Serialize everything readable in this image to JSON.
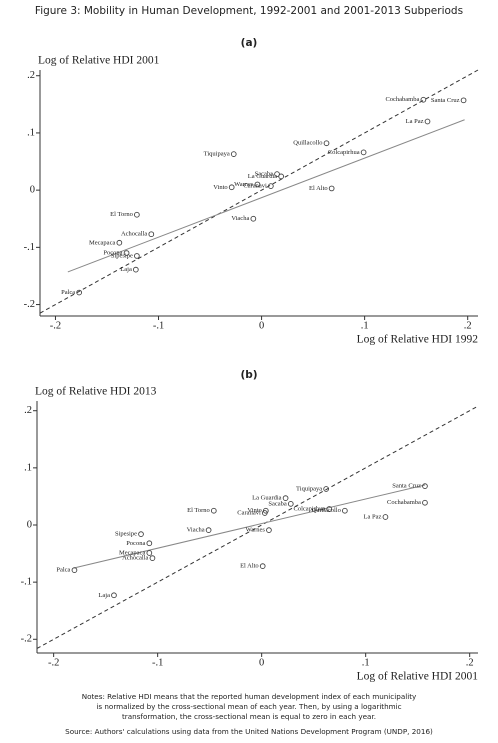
{
  "figure_title": "Figure 3: Mobility in Human Development, 1992-2001 and 2001-2013 Subperiods",
  "chart_data": [
    {
      "type": "scatter",
      "title": "(a)",
      "ylabel": "Log of Relative HDI 2001",
      "xlabel": "Log of Relative HDI 1992",
      "xlim": [
        -0.215,
        0.21
      ],
      "ylim": [
        -0.22,
        0.21
      ],
      "xticks": [
        {
          "value": -0.2,
          "label": "-.2"
        },
        {
          "value": -0.1,
          "label": "-.1"
        },
        0,
        {
          "value": 0.1,
          "label": ".1"
        },
        {
          "value": 0.2,
          "label": ".2"
        }
      ],
      "yticks": [
        {
          "value": -0.2,
          "label": "-.2"
        },
        {
          "value": -0.1,
          "label": "-.1"
        },
        0,
        {
          "value": 0.1,
          "label": ".1"
        },
        {
          "value": 0.2,
          "label": ".2"
        }
      ],
      "labels": [
        "Palca",
        "Laja",
        "Sipesipe",
        "Pocona",
        "Mecapaca",
        "Achocalla",
        "El Torno",
        "Viacha",
        "Tiquipaya",
        "Vinto",
        "Warnes",
        "Caranavi",
        "La Guardia",
        "Sacaba",
        "El Alto",
        "Quillacollo",
        "Colcapirhua",
        "Cochabamba",
        "Santa Cruz",
        "La Paz"
      ],
      "x": [
        -0.177,
        -0.122,
        -0.121,
        -0.131,
        -0.138,
        -0.107,
        -0.121,
        -0.008,
        -0.027,
        -0.029,
        -0.004,
        0.009,
        0.019,
        0.015,
        0.068,
        0.063,
        0.099,
        0.157,
        0.196,
        0.161
      ],
      "y": [
        -0.179,
        -0.139,
        -0.115,
        -0.11,
        -0.092,
        -0.077,
        -0.043,
        -0.05,
        0.063,
        0.005,
        0.01,
        0.007,
        0.024,
        0.028,
        0.003,
        0.082,
        0.066,
        0.158,
        0.157,
        0.12
      ],
      "fit_x": [
        -0.188,
        0.197
      ],
      "fit_y": [
        -0.143,
        0.123
      ]
    },
    {
      "type": "scatter",
      "title": "(b)",
      "ylabel": "Log of Relative HDI 2013",
      "xlabel": "Log of Relative HDI 2001",
      "xlim": [
        -0.216,
        0.208
      ],
      "ylim": [
        -0.224,
        0.217
      ],
      "xticks": [
        {
          "value": -0.2,
          "label": "-.2"
        },
        {
          "value": -0.1,
          "label": "-.1"
        },
        0,
        {
          "value": 0.1,
          "label": ".1"
        },
        {
          "value": 0.2,
          "label": ".2"
        }
      ],
      "yticks": [
        {
          "value": -0.2,
          "label": "-.2"
        },
        {
          "value": -0.1,
          "label": "-.1"
        },
        0,
        {
          "value": 0.1,
          "label": ".1"
        },
        {
          "value": 0.2,
          "label": ".2"
        }
      ],
      "labels": [
        "Palca",
        "Laja",
        "Sipesipe",
        "Pocona",
        "Mecapaca",
        "Achocalla",
        "El Torno",
        "Viacha",
        "El Alto",
        "Warnes",
        "Vinto",
        "Caranavi",
        "La Guardia",
        "Sacaba",
        "Tiquipaya",
        "Colcapirhua",
        "Quillacollo",
        "La Paz",
        "Santa Cruz",
        "Cochabamba"
      ],
      "x": [
        -0.18,
        -0.142,
        -0.116,
        -0.108,
        -0.108,
        -0.105,
        -0.046,
        -0.051,
        0.001,
        0.007,
        0.004,
        0.003,
        0.023,
        0.028,
        0.062,
        0.065,
        0.08,
        0.119,
        0.157,
        0.157
      ],
      "y": [
        -0.079,
        -0.123,
        -0.016,
        -0.032,
        -0.049,
        -0.058,
        0.025,
        -0.009,
        -0.072,
        -0.009,
        0.025,
        0.021,
        0.047,
        0.037,
        0.063,
        0.028,
        0.025,
        0.014,
        0.068,
        0.039
      ],
      "fit_x": [
        -0.18,
        0.157
      ],
      "fit_y": [
        -0.075,
        0.07
      ]
    }
  ],
  "notes": [
    "Notes: Relative HDI means that the reported human development index of each municipality",
    "is normalized by the cross-sectional mean of each year. Then, by using a logarithmic",
    "transformation, the cross-sectional mean is equal to zero in each year."
  ],
  "source": "Source: Authors' calculations using data from the United Nations Development Program (UNDP, 2016)"
}
